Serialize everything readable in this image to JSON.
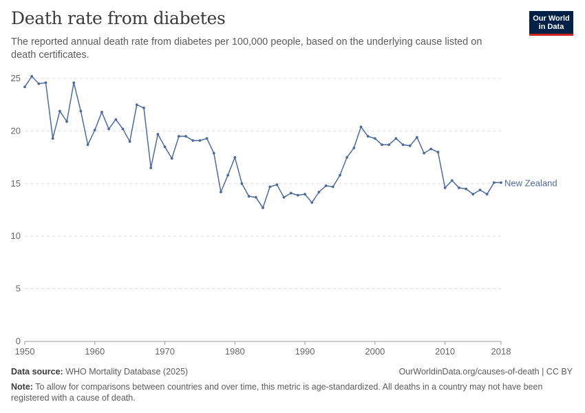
{
  "header": {
    "title": "Death rate from diabetes",
    "subtitle": "The reported annual death rate from diabetes per 100,000 people, based on the underlying cause listed on death certificates.",
    "logo_line1": "Our World",
    "logo_line2": "in Data"
  },
  "footer": {
    "source_label": "Data source:",
    "source_text": "WHO Mortality Database (2025)",
    "url": "OurWorldinData.org/causes-of-death | CC BY",
    "note_label": "Note:",
    "note_text": "To allow for comparisons between countries and over time, this metric is age-standardized. All deaths in a country may not have been registered with a cause of death."
  },
  "colors": {
    "series": "#4c6a9c",
    "grid": "#dddddd",
    "axis": "#999999",
    "tick_text": "#666666"
  },
  "chart_data": {
    "type": "line",
    "title": "Death rate from diabetes",
    "xlim": [
      1950,
      2018
    ],
    "ylim": [
      0,
      25
    ],
    "x_ticks": [
      1950,
      1960,
      1970,
      1980,
      1990,
      2000,
      2010,
      2018
    ],
    "y_ticks": [
      0,
      5,
      10,
      15,
      20,
      25
    ],
    "grid": "horizontal dashed",
    "series": [
      {
        "name": "New Zealand",
        "x": [
          1950,
          1951,
          1952,
          1953,
          1954,
          1955,
          1956,
          1957,
          1958,
          1959,
          1960,
          1961,
          1962,
          1963,
          1964,
          1965,
          1966,
          1967,
          1968,
          1969,
          1970,
          1971,
          1972,
          1973,
          1974,
          1975,
          1976,
          1977,
          1978,
          1979,
          1980,
          1981,
          1982,
          1983,
          1984,
          1985,
          1986,
          1987,
          1988,
          1989,
          1990,
          1991,
          1992,
          1993,
          1994,
          1995,
          1996,
          1997,
          1998,
          1999,
          2000,
          2001,
          2002,
          2003,
          2004,
          2005,
          2006,
          2007,
          2008,
          2009,
          2010,
          2011,
          2012,
          2013,
          2014,
          2015,
          2016,
          2017,
          2018
        ],
        "y": [
          24.2,
          25.2,
          24.5,
          24.6,
          19.3,
          21.9,
          20.9,
          24.6,
          21.9,
          18.7,
          20.1,
          21.8,
          20.2,
          21.1,
          20.2,
          19.0,
          22.5,
          22.2,
          16.5,
          19.7,
          18.5,
          17.4,
          19.5,
          19.5,
          19.1,
          19.1,
          19.3,
          17.9,
          14.2,
          15.8,
          17.5,
          15.0,
          13.8,
          13.7,
          12.7,
          14.7,
          14.9,
          13.7,
          14.1,
          13.9,
          14.0,
          13.2,
          14.2,
          14.8,
          14.7,
          15.8,
          17.5,
          18.4,
          20.4,
          19.5,
          19.3,
          18.7,
          18.7,
          19.3,
          18.7,
          18.6,
          19.4,
          17.9,
          18.3,
          18.0,
          14.6,
          15.3,
          14.6,
          14.5,
          14.0,
          14.4,
          14.0,
          15.1,
          15.1
        ]
      }
    ]
  }
}
